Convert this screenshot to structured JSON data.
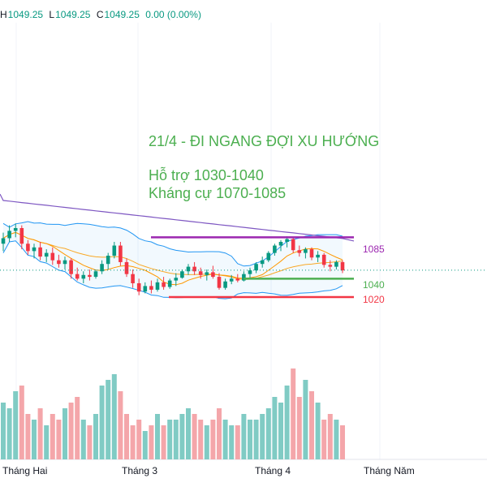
{
  "ohlc": {
    "h_label": "H",
    "h_value": "1049.25",
    "l_label": "L",
    "l_value": "1049.25",
    "c_label": "C",
    "c_value": "1049.25",
    "change": "0.00 (0.00%)"
  },
  "annotation": {
    "title": "21/4 - ĐI NGANG ĐỢI XU HƯỚNG",
    "support": "Hỗ trợ 1030-1040",
    "resistance": "Kháng cự 1070-1085"
  },
  "levels": [
    {
      "label": "1085",
      "value": 1085,
      "color": "#9c27b0"
    },
    {
      "label": "1040",
      "value": 1040,
      "color": "#4caf50"
    },
    {
      "label": "1020",
      "value": 1020,
      "color": "#f23645"
    }
  ],
  "x_ticks": [
    "Tháng Hai",
    "Tháng 3",
    "Tháng 4",
    "Tháng Năm"
  ],
  "colors": {
    "up": "#089981",
    "down": "#f23645",
    "vol_up": "#80cbc4",
    "vol_down": "#f4a6aa",
    "bands": "#2196f3",
    "ma_long": "#7e57c2",
    "ma_mid": "#ff9800"
  },
  "chart_data": {
    "type": "candlestick",
    "ylim": [
      990,
      1140
    ],
    "candles": [
      [
        1078,
        1090,
        1070,
        1084
      ],
      [
        1084,
        1098,
        1080,
        1092
      ],
      [
        1092,
        1100,
        1085,
        1095
      ],
      [
        1095,
        1098,
        1072,
        1078
      ],
      [
        1078,
        1082,
        1066,
        1070
      ],
      [
        1070,
        1078,
        1062,
        1074
      ],
      [
        1074,
        1080,
        1060,
        1064
      ],
      [
        1064,
        1072,
        1058,
        1068
      ],
      [
        1068,
        1074,
        1055,
        1060
      ],
      [
        1060,
        1066,
        1052,
        1056
      ],
      [
        1056,
        1064,
        1050,
        1060
      ],
      [
        1060,
        1062,
        1040,
        1045
      ],
      [
        1045,
        1052,
        1038,
        1040
      ],
      [
        1040,
        1048,
        1035,
        1044
      ],
      [
        1044,
        1050,
        1038,
        1042
      ],
      [
        1042,
        1050,
        1040,
        1048
      ],
      [
        1048,
        1060,
        1045,
        1056
      ],
      [
        1056,
        1068,
        1050,
        1065
      ],
      [
        1065,
        1080,
        1062,
        1076
      ],
      [
        1076,
        1080,
        1054,
        1058
      ],
      [
        1058,
        1062,
        1042,
        1045
      ],
      [
        1045,
        1050,
        1030,
        1035
      ],
      [
        1035,
        1040,
        1022,
        1026
      ],
      [
        1026,
        1036,
        1024,
        1032
      ],
      [
        1032,
        1038,
        1024,
        1028
      ],
      [
        1028,
        1040,
        1026,
        1036
      ],
      [
        1036,
        1042,
        1028,
        1031
      ],
      [
        1031,
        1040,
        1029,
        1038
      ],
      [
        1038,
        1046,
        1032,
        1041
      ],
      [
        1041,
        1050,
        1040,
        1048
      ],
      [
        1048,
        1056,
        1044,
        1053
      ],
      [
        1053,
        1058,
        1044,
        1048
      ],
      [
        1048,
        1052,
        1040,
        1044
      ],
      [
        1044,
        1050,
        1038,
        1047
      ],
      [
        1047,
        1054,
        1040,
        1042
      ],
      [
        1042,
        1046,
        1028,
        1030
      ],
      [
        1030,
        1040,
        1028,
        1037
      ],
      [
        1037,
        1044,
        1034,
        1040
      ],
      [
        1040,
        1045,
        1036,
        1038
      ],
      [
        1038,
        1048,
        1037,
        1045
      ],
      [
        1045,
        1052,
        1040,
        1049
      ],
      [
        1049,
        1058,
        1046,
        1056
      ],
      [
        1056,
        1064,
        1052,
        1060
      ],
      [
        1060,
        1070,
        1058,
        1068
      ],
      [
        1068,
        1078,
        1065,
        1076
      ],
      [
        1076,
        1082,
        1070,
        1080
      ],
      [
        1080,
        1086,
        1074,
        1083
      ],
      [
        1083,
        1085,
        1068,
        1071
      ],
      [
        1071,
        1076,
        1064,
        1068
      ],
      [
        1068,
        1074,
        1062,
        1072
      ],
      [
        1072,
        1074,
        1060,
        1063
      ],
      [
        1063,
        1070,
        1058,
        1066
      ],
      [
        1066,
        1068,
        1052,
        1055
      ],
      [
        1055,
        1060,
        1048,
        1053
      ],
      [
        1053,
        1060,
        1050,
        1058
      ],
      [
        1058,
        1060,
        1046,
        1049
      ]
    ],
    "volume": [
      1.0,
      0.9,
      1.2,
      1.3,
      0.8,
      0.7,
      0.9,
      0.6,
      0.8,
      0.7,
      0.9,
      1.0,
      1.1,
      0.7,
      0.6,
      0.8,
      1.3,
      1.4,
      1.5,
      1.2,
      0.8,
      0.6,
      0.7,
      0.5,
      0.6,
      0.8,
      0.6,
      0.7,
      0.7,
      0.8,
      0.9,
      0.8,
      0.7,
      0.6,
      0.7,
      0.9,
      0.7,
      0.6,
      0.6,
      0.8,
      0.7,
      0.7,
      0.8,
      0.9,
      1.1,
      1.0,
      1.3,
      1.6,
      1.1,
      1.4,
      1.2,
      1.0,
      0.7,
      0.8,
      0.7,
      0.6
    ]
  }
}
